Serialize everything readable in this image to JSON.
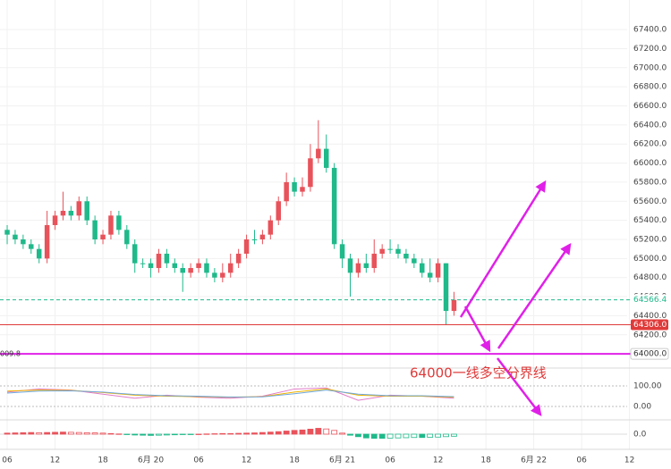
{
  "chart_data": {
    "type": "candlestick",
    "annotation": "64000一线多空分界线",
    "left_label": "009.8",
    "x": [
      0,
      1,
      2,
      3,
      4,
      5,
      6,
      7,
      8,
      9,
      10,
      11,
      12,
      13,
      14,
      15,
      16,
      17,
      18,
      19,
      20,
      21,
      22,
      23,
      24,
      25,
      26,
      27,
      28,
      29,
      30,
      31,
      32,
      33,
      34,
      35,
      36,
      37,
      38,
      39,
      40,
      41,
      42,
      43,
      44,
      45,
      46,
      47,
      48,
      49,
      50,
      51,
      52,
      53,
      54,
      55,
      56
    ],
    "open": [
      65300,
      65250,
      65200,
      65150,
      65100,
      65000,
      65350,
      65450,
      65500,
      65450,
      65600,
      65400,
      65200,
      65250,
      65450,
      65300,
      65150,
      64950,
      64950,
      64900,
      65050,
      64950,
      64900,
      64850,
      64900,
      64950,
      64850,
      64800,
      64850,
      64950,
      65050,
      65200,
      65200,
      65250,
      65400,
      65600,
      65800,
      65700,
      65750,
      66050,
      66150,
      65950,
      65150,
      65000,
      64850,
      64950,
      64900,
      65050,
      65100,
      65100,
      65050,
      65000,
      64950,
      64850,
      64800,
      64950,
      64450
    ],
    "high": [
      65350,
      65300,
      65250,
      65200,
      65150,
      65500,
      65500,
      65700,
      65550,
      65650,
      65650,
      65450,
      65300,
      65500,
      65500,
      65350,
      65200,
      65000,
      65000,
      65100,
      65100,
      65000,
      64950,
      64950,
      65000,
      65000,
      64900,
      64950,
      65050,
      65100,
      65250,
      65300,
      65300,
      65450,
      65650,
      65900,
      65850,
      65850,
      66200,
      66450,
      66300,
      66000,
      65200,
      65050,
      65000,
      65050,
      65200,
      65150,
      65200,
      65150,
      65100,
      65050,
      65000,
      65000,
      65000,
      64950,
      64650
    ],
    "low": [
      65150,
      65150,
      65100,
      65050,
      64950,
      64950,
      65300,
      65400,
      65400,
      65400,
      65350,
      65150,
      65150,
      65200,
      65250,
      65100,
      64850,
      64900,
      64800,
      64850,
      64900,
      64850,
      64650,
      64800,
      64850,
      64800,
      64750,
      64750,
      64800,
      64900,
      65000,
      65150,
      65150,
      65200,
      65350,
      65550,
      65650,
      65650,
      65700,
      66000,
      65900,
      65100,
      64900,
      64600,
      64800,
      64850,
      64850,
      65000,
      65050,
      65000,
      64950,
      64900,
      64800,
      64750,
      64750,
      64306,
      64400
    ],
    "close": [
      65250,
      65200,
      65150,
      65100,
      65000,
      65350,
      65450,
      65500,
      65450,
      65600,
      65400,
      65200,
      65250,
      65450,
      65300,
      65150,
      64950,
      64950,
      64900,
      65050,
      64950,
      64900,
      64850,
      64900,
      64950,
      64850,
      64800,
      64850,
      64950,
      65050,
      65200,
      65200,
      65250,
      65400,
      65600,
      65800,
      65700,
      65750,
      66050,
      66150,
      65950,
      65150,
      65000,
      64850,
      64950,
      64900,
      65050,
      65100,
      65100,
      65050,
      65000,
      64950,
      64850,
      64800,
      64950,
      64450,
      64566.4
    ],
    "up_color": "#e8525a",
    "down_color": "#1fb98a",
    "xlim": [
      -0.9,
      83.2
    ],
    "xticks": [
      {
        "value": 0,
        "label": "06"
      },
      {
        "value": 6,
        "label": "12"
      },
      {
        "value": 12,
        "label": "18"
      },
      {
        "value": 18,
        "label": "6月 20"
      },
      {
        "value": 24,
        "label": "06"
      },
      {
        "value": 30,
        "label": "12"
      },
      {
        "value": 36,
        "label": "18"
      },
      {
        "value": 42,
        "label": "6月 21"
      },
      {
        "value": 48,
        "label": "06"
      },
      {
        "value": 54,
        "label": "12"
      },
      {
        "value": 60,
        "label": "18"
      },
      {
        "value": 66,
        "label": "6月 22"
      },
      {
        "value": 72,
        "label": "06"
      },
      {
        "value": 78,
        "label": "12"
      }
    ],
    "ylim": [
      63870,
      67710
    ],
    "yticks": [
      {
        "value": 64200,
        "label": "64200.0"
      },
      {
        "value": 64400,
        "label": "64400.0"
      },
      {
        "value": 64600,
        "label": "64600.0"
      },
      {
        "value": 64800,
        "label": "64800.0"
      },
      {
        "value": 65000,
        "label": "65000.0"
      },
      {
        "value": 65200,
        "label": "65200.0"
      },
      {
        "value": 65400,
        "label": "65400.0"
      },
      {
        "value": 65600,
        "label": "65600.0"
      },
      {
        "value": 65800,
        "label": "65800.0"
      },
      {
        "value": 66000,
        "label": "66000.0"
      },
      {
        "value": 66200,
        "label": "66200.0"
      },
      {
        "value": 66400,
        "label": "66400.0"
      },
      {
        "value": 66600,
        "label": "66600.0"
      },
      {
        "value": 66800,
        "label": "66800.0"
      },
      {
        "value": 67000,
        "label": "67000.0"
      },
      {
        "value": 67200,
        "label": "67200.0"
      },
      {
        "value": 67400,
        "label": "67400.0"
      }
    ],
    "grid": true,
    "price_lines": [
      {
        "value": 64566.4,
        "label": "64566.4",
        "color": "#1fb98a",
        "style": "dashed"
      },
      {
        "value": 64306,
        "label": "64306.0",
        "color": "#e03a3a",
        "style": "solid"
      },
      {
        "value": 64000,
        "label": "64000.0",
        "color": "#e020e8",
        "style": "solid"
      }
    ],
    "oscillator": {
      "x": [
        0,
        4,
        8,
        12,
        16,
        20,
        24,
        28,
        32,
        36,
        40,
        44,
        48,
        52,
        56
      ],
      "ylim": [
        -65,
        152
      ],
      "yticks": [
        {
          "value": 100,
          "label": "100.00"
        },
        {
          "value": 0,
          "label": "0.00"
        }
      ],
      "series": [
        {
          "color": "#e07cc8",
          "values": [
            70,
            85,
            80,
            60,
            40,
            55,
            45,
            40,
            50,
            85,
            90,
            30,
            55,
            50,
            40
          ]
        },
        {
          "color": "#f0b400",
          "values": [
            75,
            80,
            78,
            68,
            55,
            50,
            48,
            45,
            48,
            70,
            85,
            55,
            50,
            50,
            45
          ]
        },
        {
          "color": "#6fa8dc",
          "values": [
            65,
            75,
            76,
            70,
            58,
            52,
            50,
            46,
            47,
            62,
            80,
            60,
            52,
            52,
            48
          ]
        }
      ]
    },
    "histogram": {
      "ylim": [
        -60,
        60
      ],
      "yticks": [
        {
          "value": 0,
          "label": "0.0"
        }
      ],
      "values": [
        5,
        6,
        7,
        8,
        7,
        8,
        9,
        10,
        9,
        8,
        7,
        6,
        5,
        3,
        1,
        -2,
        -4,
        -5,
        -6,
        -5,
        -4,
        -3,
        -2,
        -1,
        0,
        1,
        2,
        3,
        3,
        4,
        5,
        6,
        8,
        10,
        12,
        15,
        18,
        20,
        24,
        28,
        25,
        18,
        5,
        -5,
        -12,
        -18,
        -20,
        -20,
        -19,
        -18,
        -17,
        -16,
        -16,
        -15,
        -14,
        -12,
        -10
      ]
    }
  }
}
